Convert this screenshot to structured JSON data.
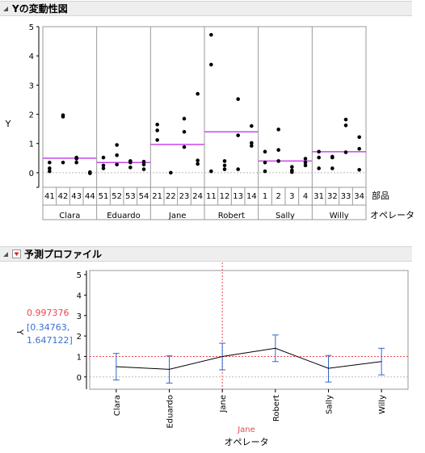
{
  "variability_panel": {
    "title": "Yの変動性図",
    "y_label": "Y",
    "part_label": "部品",
    "operator_label": "オペレータ"
  },
  "profiler_panel": {
    "title": "予測プロファイル",
    "y_label": "Y",
    "current_value": "0.997376",
    "interval": "[0.34763, 1.647122]",
    "interval_line1": "[0.34763,",
    "interval_line2": "1.647122]",
    "x_current": "Jane",
    "x_label": "オペレータ"
  },
  "colors": {
    "mean_line": "#cc44ee",
    "error_bar": "#3366cc",
    "current_value": "#e8474f",
    "interval_text": "#3b6fd6"
  },
  "chart_data": [
    {
      "type": "scatter",
      "title": "Yの変動性図",
      "ylabel": "Y",
      "ylim": [
        -0.5,
        5
      ],
      "yticks": [
        0,
        1,
        2,
        3,
        4,
        5
      ],
      "xlabel_inner": "部品",
      "xlabel_outer": "オペレータ",
      "groups": [
        {
          "operator": "Clara",
          "mean": 0.5,
          "parts": [
            {
              "part": "41",
              "values": [
                0.35,
                0.15,
                0.05
              ]
            },
            {
              "part": "42",
              "values": [
                1.97,
                1.92,
                0.35
              ]
            },
            {
              "part": "43",
              "values": [
                0.52,
                0.48,
                0.35
              ]
            },
            {
              "part": "44",
              "values": [
                0.02,
                -0.02
              ]
            }
          ]
        },
        {
          "operator": "Eduardo",
          "mean": 0.35,
          "parts": [
            {
              "part": "51",
              "values": [
                0.52,
                0.25,
                0.15
              ]
            },
            {
              "part": "52",
              "values": [
                0.95,
                0.6,
                0.28
              ]
            },
            {
              "part": "53",
              "values": [
                0.4,
                0.35,
                0.18
              ]
            },
            {
              "part": "54",
              "values": [
                0.38,
                0.28,
                0.12
              ]
            }
          ]
        },
        {
          "operator": "Jane",
          "mean": 0.97,
          "parts": [
            {
              "part": "21",
              "values": [
                1.65,
                1.45,
                1.12
              ]
            },
            {
              "part": "22",
              "values": [
                0.0
              ]
            },
            {
              "part": "23",
              "values": [
                1.85,
                1.4,
                0.88
              ]
            },
            {
              "part": "24",
              "values": [
                2.7,
                0.42,
                0.3
              ]
            }
          ]
        },
        {
          "operator": "Robert",
          "mean": 1.4,
          "parts": [
            {
              "part": "11",
              "values": [
                4.72,
                3.7,
                0.05
              ]
            },
            {
              "part": "12",
              "values": [
                0.4,
                0.25,
                0.12
              ]
            },
            {
              "part": "13",
              "values": [
                2.52,
                1.28,
                0.12
              ]
            },
            {
              "part": "14",
              "values": [
                1.6,
                1.02,
                0.92
              ]
            }
          ]
        },
        {
          "operator": "Sally",
          "mean": 0.4,
          "parts": [
            {
              "part": "1",
              "values": [
                0.72,
                0.35,
                0.05
              ]
            },
            {
              "part": "2",
              "values": [
                1.48,
                0.78,
                0.4
              ]
            },
            {
              "part": "3",
              "values": [
                0.2,
                0.08,
                0.02
              ]
            },
            {
              "part": "4",
              "values": [
                0.48,
                0.35,
                0.25
              ]
            }
          ]
        },
        {
          "operator": "Willy",
          "mean": 0.72,
          "parts": [
            {
              "part": "31",
              "values": [
                0.72,
                0.52,
                0.15
              ]
            },
            {
              "part": "32",
              "values": [
                0.55,
                0.52,
                0.15
              ]
            },
            {
              "part": "33",
              "values": [
                1.82,
                1.62,
                0.7
              ]
            },
            {
              "part": "34",
              "values": [
                1.22,
                0.82,
                0.1
              ]
            }
          ]
        }
      ]
    },
    {
      "type": "line",
      "title": "予測プロファイル",
      "ylabel": "Y",
      "xlabel": "オペレータ",
      "ylim": [
        -0.6,
        5.2
      ],
      "yticks": [
        0,
        1,
        2,
        3,
        4,
        5
      ],
      "categories": [
        "Clara",
        "Eduardo",
        "Jane",
        "Robert",
        "Sally",
        "Willy"
      ],
      "values": [
        0.5,
        0.37,
        0.997376,
        1.4,
        0.42,
        0.75
      ],
      "lower": [
        -0.15,
        -0.3,
        0.34763,
        0.75,
        -0.25,
        0.1
      ],
      "upper": [
        1.15,
        1.03,
        1.647122,
        2.05,
        1.05,
        1.4
      ],
      "current_category": "Jane",
      "current_value": 0.997376,
      "reference_y": 0
    }
  ]
}
